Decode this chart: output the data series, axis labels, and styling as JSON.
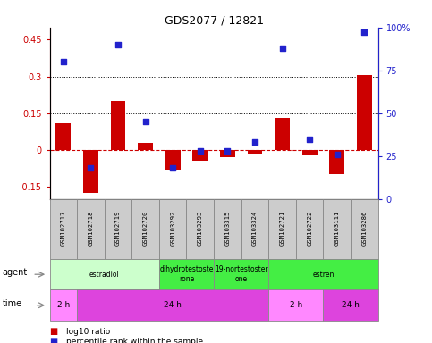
{
  "title": "GDS2077 / 12821",
  "samples": [
    "GSM102717",
    "GSM102718",
    "GSM102719",
    "GSM102720",
    "GSM103292",
    "GSM103293",
    "GSM103315",
    "GSM103324",
    "GSM102721",
    "GSM102722",
    "GSM103111",
    "GSM103286"
  ],
  "log10_ratio": [
    0.11,
    -0.175,
    0.2,
    0.03,
    -0.08,
    -0.045,
    -0.03,
    -0.015,
    0.13,
    -0.02,
    -0.1,
    0.305
  ],
  "percentile_rank": [
    80,
    18,
    90,
    45,
    18,
    28,
    28,
    33,
    88,
    35,
    26,
    97
  ],
  "ylim_left": [
    -0.2,
    0.5
  ],
  "ylim_right": [
    0,
    100
  ],
  "yticks_left": [
    -0.15,
    0,
    0.15,
    0.3,
    0.45
  ],
  "yticks_right": [
    0,
    25,
    50,
    75,
    100
  ],
  "hlines": [
    0.15,
    0.3
  ],
  "bar_color": "#cc0000",
  "scatter_color": "#2222cc",
  "zero_line_color": "#cc0000",
  "agent_groups": [
    {
      "label": "estradiol",
      "start": 0,
      "end": 4,
      "color": "#ccffcc"
    },
    {
      "label": "dihydrotestoste\nrone",
      "start": 4,
      "end": 6,
      "color": "#44ee44"
    },
    {
      "label": "19-nortestoster\none",
      "start": 6,
      "end": 8,
      "color": "#44ee44"
    },
    {
      "label": "estren",
      "start": 8,
      "end": 12,
      "color": "#44ee44"
    }
  ],
  "time_groups": [
    {
      "label": "2 h",
      "start": 0,
      "end": 1,
      "color": "#ff88ff"
    },
    {
      "label": "24 h",
      "start": 1,
      "end": 8,
      "color": "#dd44dd"
    },
    {
      "label": "2 h",
      "start": 8,
      "end": 10,
      "color": "#ff88ff"
    },
    {
      "label": "24 h",
      "start": 10,
      "end": 12,
      "color": "#dd44dd"
    }
  ],
  "legend_bar_label": "log10 ratio",
  "legend_scatter_label": "percentile rank within the sample",
  "left_axis_color": "#cc0000",
  "right_axis_color": "#2222cc",
  "bar_width": 0.55,
  "sample_box_color": "#cccccc",
  "sample_box_edge": "#888888"
}
